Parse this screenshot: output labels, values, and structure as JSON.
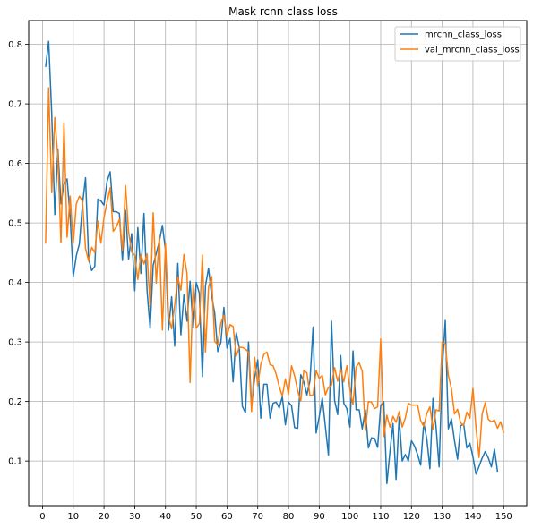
{
  "chart_data": {
    "type": "line",
    "title": "Mask rcnn class loss",
    "xlabel": "",
    "ylabel": "",
    "xlim": [
      -4.5,
      157.5
    ],
    "ylim": [
      0.025,
      0.84
    ],
    "grid": true,
    "legend_position": "top-right",
    "x_ticks": [
      0,
      10,
      20,
      30,
      40,
      50,
      60,
      70,
      80,
      90,
      100,
      110,
      120,
      130,
      140,
      150
    ],
    "y_ticks": [
      0.1,
      0.2,
      0.3,
      0.4,
      0.5,
      0.6,
      0.7,
      0.8
    ],
    "x_start": 1,
    "series": [
      {
        "name": "mrcnn_class_loss",
        "color": "#1f77b4",
        "values": [
          0.762,
          0.805,
          0.683,
          0.514,
          0.624,
          0.532,
          0.565,
          0.574,
          0.51,
          0.41,
          0.445,
          0.465,
          0.531,
          0.576,
          0.44,
          0.42,
          0.427,
          0.54,
          0.537,
          0.53,
          0.57,
          0.586,
          0.519,
          0.519,
          0.516,
          0.437,
          0.521,
          0.439,
          0.482,
          0.386,
          0.492,
          0.415,
          0.516,
          0.387,
          0.323,
          0.429,
          0.449,
          0.469,
          0.496,
          0.454,
          0.32,
          0.376,
          0.293,
          0.432,
          0.312,
          0.38,
          0.335,
          0.402,
          0.323,
          0.4,
          0.382,
          0.242,
          0.394,
          0.424,
          0.378,
          0.349,
          0.284,
          0.299,
          0.358,
          0.29,
          0.306,
          0.233,
          0.316,
          0.29,
          0.192,
          0.181,
          0.3,
          0.191,
          0.24,
          0.27,
          0.172,
          0.229,
          0.229,
          0.172,
          0.197,
          0.199,
          0.189,
          0.208,
          0.161,
          0.199,
          0.193,
          0.156,
          0.155,
          0.245,
          0.233,
          0.211,
          0.235,
          0.325,
          0.147,
          0.174,
          0.206,
          0.158,
          0.11,
          0.335,
          0.202,
          0.178,
          0.277,
          0.197,
          0.188,
          0.157,
          0.285,
          0.186,
          0.186,
          0.154,
          0.186,
          0.122,
          0.139,
          0.138,
          0.123,
          0.193,
          0.2,
          0.062,
          0.115,
          0.163,
          0.069,
          0.174,
          0.1,
          0.111,
          0.1,
          0.134,
          0.125,
          0.111,
          0.093,
          0.164,
          0.137,
          0.087,
          0.205,
          0.158,
          0.09,
          0.252,
          0.336,
          0.154,
          0.171,
          0.134,
          0.103,
          0.159,
          0.162,
          0.122,
          0.13,
          0.107,
          0.078,
          0.091,
          0.105,
          0.116,
          0.105,
          0.09,
          0.12,
          0.082
        ]
      },
      {
        "name": "val_mrcnn_class_loss",
        "color": "#ff7f0e",
        "values": [
          0.465,
          0.727,
          0.551,
          0.677,
          0.611,
          0.467,
          0.668,
          0.476,
          0.545,
          0.466,
          0.532,
          0.545,
          0.537,
          0.457,
          0.436,
          0.459,
          0.45,
          0.503,
          0.466,
          0.509,
          0.535,
          0.559,
          0.486,
          0.493,
          0.506,
          0.454,
          0.563,
          0.485,
          0.451,
          0.446,
          0.405,
          0.447,
          0.431,
          0.448,
          0.36,
          0.517,
          0.399,
          0.477,
          0.32,
          0.465,
          0.344,
          0.322,
          0.362,
          0.409,
          0.387,
          0.447,
          0.415,
          0.232,
          0.398,
          0.323,
          0.331,
          0.446,
          0.283,
          0.392,
          0.41,
          0.301,
          0.295,
          0.332,
          0.345,
          0.311,
          0.329,
          0.326,
          0.276,
          0.291,
          0.291,
          0.288,
          0.283,
          0.183,
          0.274,
          0.227,
          0.262,
          0.279,
          0.283,
          0.262,
          0.26,
          0.246,
          0.225,
          0.209,
          0.238,
          0.212,
          0.26,
          0.243,
          0.218,
          0.201,
          0.252,
          0.248,
          0.21,
          0.211,
          0.252,
          0.239,
          0.244,
          0.211,
          0.224,
          0.227,
          0.257,
          0.234,
          0.254,
          0.233,
          0.26,
          0.22,
          0.195,
          0.258,
          0.265,
          0.251,
          0.151,
          0.2,
          0.199,
          0.188,
          0.191,
          0.305,
          0.141,
          0.177,
          0.157,
          0.175,
          0.165,
          0.183,
          0.157,
          0.172,
          0.197,
          0.194,
          0.194,
          0.194,
          0.168,
          0.158,
          0.18,
          0.191,
          0.154,
          0.186,
          0.184,
          0.3,
          0.297,
          0.244,
          0.222,
          0.179,
          0.187,
          0.164,
          0.16,
          0.182,
          0.172,
          0.222,
          0.156,
          0.106,
          0.179,
          0.198,
          0.17,
          0.166,
          0.169,
          0.155,
          0.166,
          0.147
        ]
      }
    ]
  }
}
